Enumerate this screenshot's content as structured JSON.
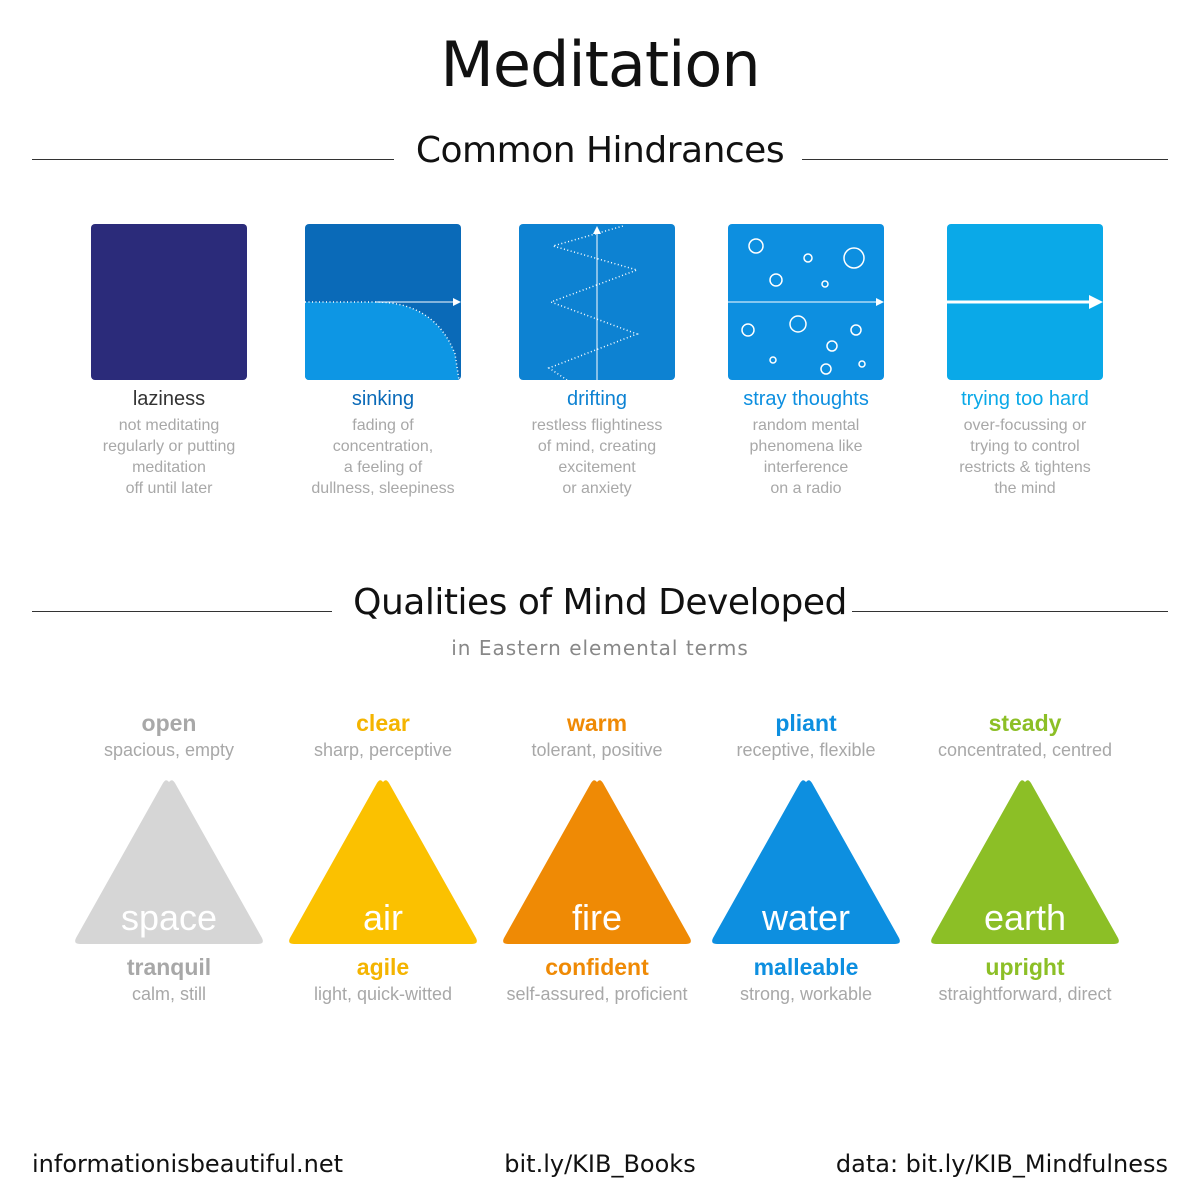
{
  "title": "Meditation",
  "section1": {
    "label": "Common Hindrances"
  },
  "section2": {
    "label": "Qualities of Mind Developed",
    "subtitle": "in Eastern elemental terms"
  },
  "hindrances": [
    {
      "name": "laziness",
      "desc": [
        "not meditating",
        "regularly or putting",
        "meditation",
        "off until later"
      ],
      "color": "#2b2b7a",
      "name_color": "#333333",
      "icon": "solid-square-icon"
    },
    {
      "name": "sinking",
      "desc": [
        "fading of",
        "concentration,",
        "a feeling of",
        "dullness, sleepiness"
      ],
      "color": "#0a6ab8",
      "name_color": "#0a6ab8",
      "icon": "sinking-curve-icon"
    },
    {
      "name": "drifting",
      "desc": [
        "restless flightiness",
        "of mind, creating",
        "excitement",
        "or anxiety"
      ],
      "color": "#0d82d2",
      "name_color": "#0d82d2",
      "icon": "zigzag-icon"
    },
    {
      "name": "stray thoughts",
      "desc": [
        "random mental",
        "phenomena like",
        "interference",
        "on a radio"
      ],
      "color": "#0d8fe0",
      "name_color": "#0d8fe0",
      "icon": "bubbles-icon"
    },
    {
      "name": "trying too hard",
      "desc": [
        "over-focussing or",
        "trying to control",
        "restricts & tightens",
        "the mind"
      ],
      "color": "#0aa9e8",
      "name_color": "#0aa9e8",
      "icon": "arrow-line-icon"
    }
  ],
  "qualities": [
    {
      "top": "open",
      "top_sub": "spacious, empty",
      "element": "space",
      "bottom": "tranquil",
      "bottom_sub": "calm, still",
      "color": "#d6d6d6",
      "text_color": "#a8a8a8"
    },
    {
      "top": "clear",
      "top_sub": "sharp, perceptive",
      "element": "air",
      "bottom": "agile",
      "bottom_sub": "light, quick-witted",
      "color": "#fbc100",
      "text_color": "#f4b400"
    },
    {
      "top": "warm",
      "top_sub": "tolerant, positive",
      "element": "fire",
      "bottom": "confident",
      "bottom_sub": "self-assured, proficient",
      "color": "#ef8a05",
      "text_color": "#ef8a05"
    },
    {
      "top": "pliant",
      "top_sub": "receptive, flexible",
      "element": "water",
      "bottom": "malleable",
      "bottom_sub": "strong, workable",
      "color": "#0d8fe0",
      "text_color": "#0d8fe0"
    },
    {
      "top": "steady",
      "top_sub": "concentrated, centred",
      "element": "earth",
      "bottom": "upright",
      "bottom_sub": "straightforward, direct",
      "color": "#8cbf26",
      "text_color": "#8cbf26"
    }
  ],
  "footer": {
    "left": "informationisbeautiful.net",
    "center": "bit.ly/KIB_Books",
    "right": "data: bit.ly/KIB_Mindfulness"
  }
}
